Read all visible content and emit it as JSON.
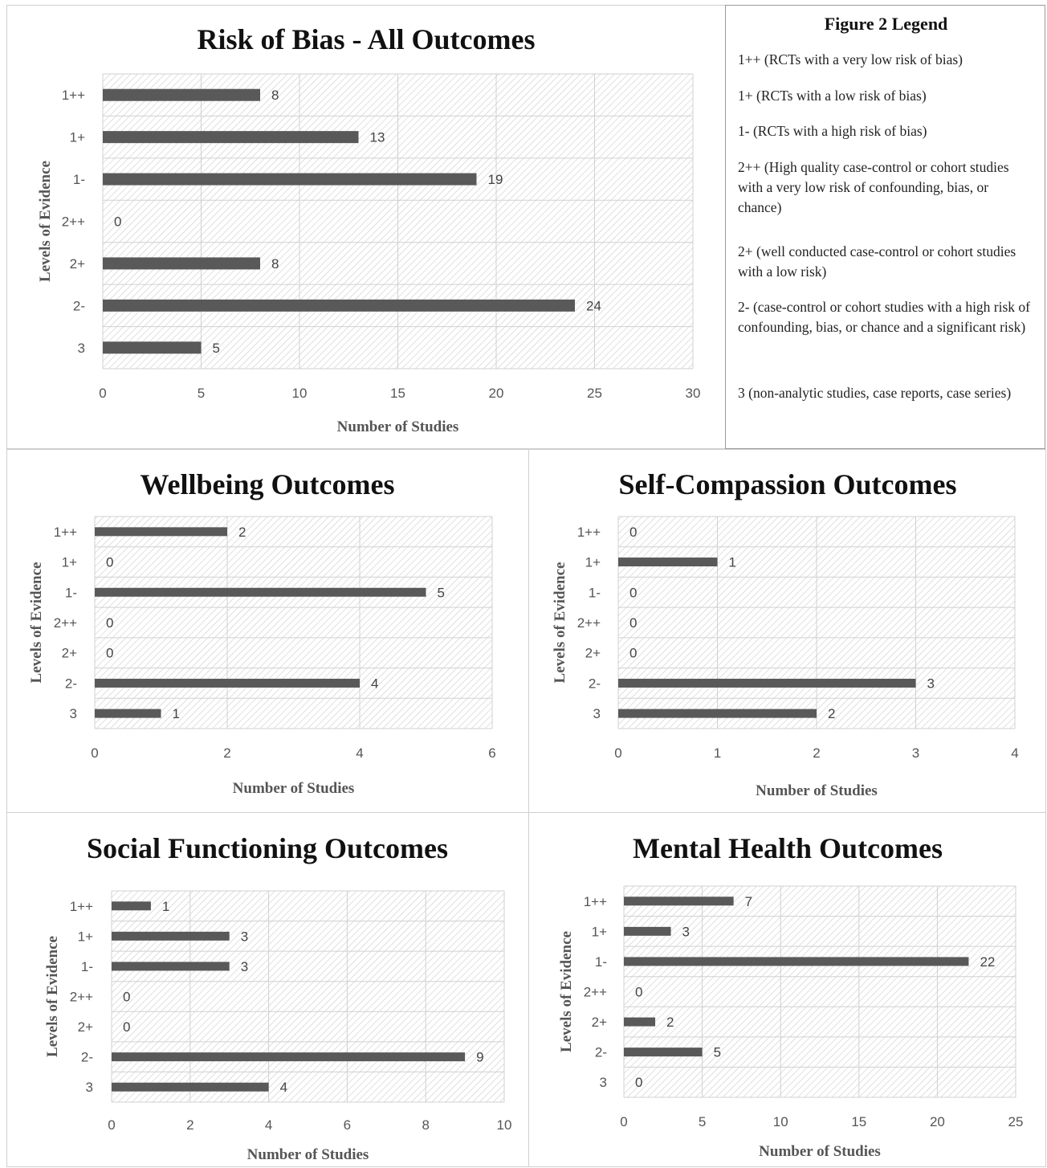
{
  "legend": {
    "title": "Figure 2 Legend",
    "items": [
      "1++ (RCTs with a very low risk of bias)",
      "1+ (RCTs with a low risk of bias)",
      "1- (RCTs with a high risk of bias)",
      "2++ (High quality case-control or cohort studies with a very low risk of confounding, bias, or chance)",
      "2+ (well conducted case-control or cohort studies with a low risk)",
      "2- (case-control or cohort studies with a high risk of confounding, bias, or chance and a significant risk)",
      "3 (non-analytic studies, case reports, case series)"
    ]
  },
  "chart_data": [
    {
      "type": "bar",
      "orientation": "horizontal",
      "title": "Risk of Bias - All Outcomes",
      "xlabel": "Number of Studies",
      "ylabel": "Levels of Evidence",
      "categories": [
        "1++",
        "1+",
        "1-",
        "2++",
        "2+",
        "2-",
        "3"
      ],
      "values": [
        8,
        13,
        19,
        0,
        8,
        24,
        5
      ],
      "xlim": [
        0,
        30
      ],
      "xticks": [
        0,
        5,
        10,
        15,
        20,
        25,
        30
      ],
      "grid": true,
      "bar_color": "#595959"
    },
    {
      "type": "bar",
      "orientation": "horizontal",
      "title": "Wellbeing Outcomes",
      "xlabel": "Number of Studies",
      "ylabel": "Levels of Evidence",
      "categories": [
        "1++",
        "1+",
        "1-",
        "2++",
        "2+",
        "2-",
        "3"
      ],
      "values": [
        2,
        0,
        5,
        0,
        0,
        4,
        1
      ],
      "xlim": [
        0,
        6
      ],
      "xticks": [
        0,
        2,
        4,
        6
      ],
      "grid": true,
      "bar_color": "#595959"
    },
    {
      "type": "bar",
      "orientation": "horizontal",
      "title": "Self-Compassion Outcomes",
      "xlabel": "Number of Studies",
      "ylabel": "Levels of Evidence",
      "categories": [
        "1++",
        "1+",
        "1-",
        "2++",
        "2+",
        "2-",
        "3"
      ],
      "values": [
        0,
        1,
        0,
        0,
        0,
        3,
        2
      ],
      "xlim": [
        0,
        4
      ],
      "xticks": [
        0,
        1,
        2,
        3,
        4
      ],
      "grid": true,
      "bar_color": "#595959"
    },
    {
      "type": "bar",
      "orientation": "horizontal",
      "title": "Social Functioning Outcomes",
      "xlabel": "Number of Studies",
      "ylabel": "Levels of Evidence",
      "categories": [
        "1++",
        "1+",
        "1-",
        "2++",
        "2+",
        "2-",
        "3"
      ],
      "values": [
        1,
        3,
        3,
        0,
        0,
        9,
        4
      ],
      "xlim": [
        0,
        10
      ],
      "xticks": [
        0,
        2,
        4,
        6,
        8,
        10
      ],
      "grid": true,
      "bar_color": "#595959"
    },
    {
      "type": "bar",
      "orientation": "horizontal",
      "title": "Mental Health Outcomes",
      "xlabel": "Number of Studies",
      "ylabel": "Levels of Evidence",
      "categories": [
        "1++",
        "1+",
        "1-",
        "2++",
        "2+",
        "2-",
        "3"
      ],
      "values": [
        7,
        3,
        22,
        0,
        2,
        5,
        0
      ],
      "xlim": [
        0,
        25
      ],
      "xticks": [
        0,
        5,
        10,
        15,
        20,
        25
      ],
      "grid": true,
      "bar_color": "#595959"
    }
  ]
}
